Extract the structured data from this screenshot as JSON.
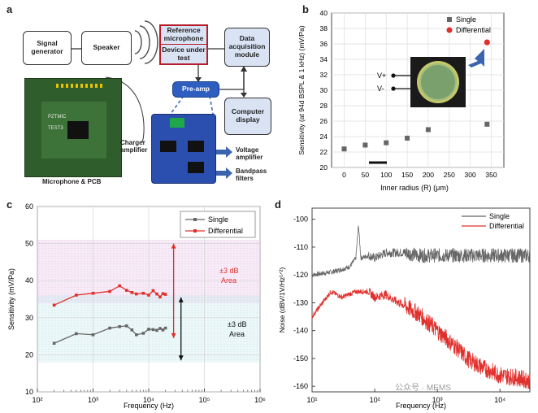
{
  "panels": {
    "a": "a",
    "b": "b",
    "c": "c",
    "d": "d"
  },
  "diagram": {
    "signal_generator": "Signal generator",
    "speaker": "Speaker",
    "reference_microphone": "Reference microphone",
    "device_under_test": "Device under test",
    "daq": "Data acquisition module",
    "preamp": "Pre-amp",
    "computer_display": "Computer display",
    "charger_amplifier": "Charger amplifier",
    "voltage_amplifier": "Voltage amplifier",
    "bandpass_filters": "Bandpass filters",
    "mic_pcb_caption": "Microphone & PCB",
    "pcb_text": [
      "PZTMIC",
      "TEST3"
    ]
  },
  "colors": {
    "single": "#666666",
    "differential": "#e0302c",
    "blue_box": "#d9e3f4",
    "arrow": "#3b64ad"
  },
  "chart_data": [
    {
      "panel": "b",
      "type": "scatter",
      "xlabel": "Inner radius (R) (μm)",
      "ylabel": "Sensitivity (at 94d BSPL & 1 kHz) (mV/Pa)",
      "xlim": [
        -30,
        380
      ],
      "ylim": [
        20,
        40
      ],
      "xticks": [
        0,
        50,
        100,
        150,
        200,
        250,
        300,
        350
      ],
      "yticks": [
        20,
        22,
        24,
        26,
        28,
        30,
        32,
        34,
        36,
        38,
        40
      ],
      "series": [
        {
          "name": "Single",
          "marker": "square",
          "x": [
            0,
            50,
            100,
            150,
            200,
            340
          ],
          "y": [
            22.4,
            22.9,
            23.2,
            23.8,
            24.9,
            25.6
          ]
        },
        {
          "name": "Differential",
          "marker": "circle",
          "x": [
            340
          ],
          "y": [
            36.2
          ]
        }
      ],
      "inset_labels": [
        "V+",
        "V-"
      ],
      "legend": "top-right"
    },
    {
      "panel": "c",
      "type": "line",
      "xlabel": "Frequency (Hz)",
      "ylabel": "Sensitivity (mV/Pa)",
      "xscale": "log",
      "xlim": [
        100,
        1000000
      ],
      "ylim": [
        10,
        60
      ],
      "xticks": [
        "10²",
        "10³",
        "10⁴",
        "10⁵",
        "10⁶"
      ],
      "yticks": [
        10,
        20,
        30,
        40,
        50,
        60
      ],
      "series": [
        {
          "name": "Single",
          "x": [
            200,
            500,
            1000,
            2000,
            3000,
            4000,
            5000,
            6000,
            8000,
            10000,
            12000,
            14000,
            16000,
            18000,
            20000
          ],
          "y": [
            23.1,
            25.7,
            25.4,
            27.2,
            27.6,
            27.8,
            26.7,
            25.4,
            25.8,
            26.9,
            26.8,
            26.6,
            27.1,
            26.7,
            27.2
          ]
        },
        {
          "name": "Differential",
          "x": [
            200,
            500,
            1000,
            2000,
            3000,
            4000,
            5000,
            6000,
            8000,
            10000,
            12000,
            14000,
            16000,
            18000,
            20000
          ],
          "y": [
            33.4,
            36.1,
            36.6,
            37.1,
            38.6,
            37.4,
            36.8,
            36.4,
            36.6,
            36.1,
            37.3,
            36.4,
            35.6,
            36.5,
            36.3
          ]
        }
      ],
      "bands": [
        {
          "label": "±3 dB Area",
          "range": [
            34,
            51
          ],
          "color": "#e8c7e8"
        },
        {
          "label": "±3 dB Area",
          "range": [
            18,
            36
          ],
          "color": "#c8e7ea"
        }
      ],
      "annotations": [
        "±3 dB\nArea",
        "±3 dB\nArea"
      ],
      "legend": "top-right"
    },
    {
      "panel": "d",
      "type": "line",
      "xlabel": "Frequency (Hz)",
      "ylabel": "Noise (dBV/1V/Hz¹ᐟ²)",
      "xscale": "log",
      "xlim": [
        10,
        30000
      ],
      "ylim": [
        -162,
        -96
      ],
      "xticks": [
        "10¹",
        "10²",
        "10³",
        "10⁴"
      ],
      "yticks": [
        -100,
        -110,
        -120,
        -130,
        -140,
        -150,
        -160
      ],
      "series": [
        {
          "name": "Single",
          "x": [
            10,
            20,
            30,
            40,
            50,
            55,
            60,
            80,
            100,
            150,
            200,
            300,
            500,
            1000,
            2000,
            5000,
            10000,
            30000
          ],
          "y": [
            -120,
            -119,
            -118,
            -117,
            -114,
            -102,
            -114,
            -113,
            -114,
            -112,
            -112,
            -112,
            -113,
            -113,
            -113,
            -113,
            -113,
            -113
          ]
        },
        {
          "name": "Differential",
          "x": [
            10,
            20,
            30,
            50,
            80,
            100,
            150,
            200,
            300,
            500,
            1000,
            2000,
            3000,
            5000,
            10000,
            20000,
            30000
          ],
          "y": [
            -135,
            -126,
            -128,
            -126,
            -126,
            -128,
            -127,
            -129,
            -131,
            -134,
            -140,
            -146,
            -150,
            -153,
            -156,
            -157,
            -158
          ]
        }
      ],
      "legend": "top-right"
    }
  ],
  "watermark": "公众号 · MEMS"
}
